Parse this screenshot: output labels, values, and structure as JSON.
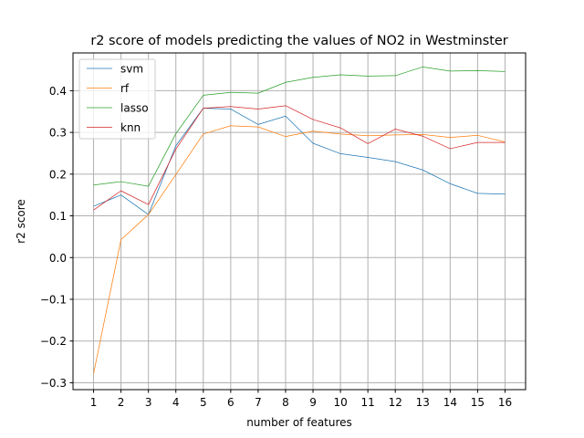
{
  "chart_data": {
    "type": "line",
    "title": "r2 score of models predicting the values of NO2 in Westminster",
    "xlabel": "number of features",
    "ylabel": "r2 score",
    "x": [
      1,
      2,
      3,
      4,
      5,
      6,
      7,
      8,
      9,
      10,
      11,
      12,
      13,
      14,
      15,
      16
    ],
    "xlim": [
      0.25,
      16.75
    ],
    "ylim": [
      -0.3165,
      0.4905
    ],
    "yticks": [
      -0.3,
      -0.2,
      -0.1,
      0.0,
      0.1,
      0.2,
      0.3,
      0.4
    ],
    "ytick_labels": [
      "−0.3",
      "−0.2",
      "−0.1",
      "0.0",
      "0.1",
      "0.2",
      "0.3",
      "0.4"
    ],
    "grid": true,
    "legend_position": "top-left",
    "series": [
      {
        "name": "svm",
        "color": "#1f77b4",
        "values": [
          0.123,
          0.15,
          0.103,
          0.268,
          0.358,
          0.356,
          0.319,
          0.339,
          0.274,
          0.249,
          0.24,
          0.23,
          0.21,
          0.177,
          0.154,
          0.152
        ]
      },
      {
        "name": "rf",
        "color": "#ff7f0e",
        "values": [
          -0.278,
          0.043,
          0.103,
          0.199,
          0.296,
          0.316,
          0.313,
          0.29,
          0.303,
          0.296,
          0.292,
          0.294,
          0.295,
          0.288,
          0.293,
          0.277
        ]
      },
      {
        "name": "lasso",
        "color": "#2ca02c",
        "values": [
          0.174,
          0.182,
          0.171,
          0.297,
          0.389,
          0.396,
          0.394,
          0.42,
          0.432,
          0.438,
          0.435,
          0.436,
          0.457,
          0.447,
          0.448,
          0.446
        ]
      },
      {
        "name": "knn",
        "color": "#d62728",
        "values": [
          0.114,
          0.16,
          0.127,
          0.26,
          0.358,
          0.362,
          0.356,
          0.364,
          0.331,
          0.311,
          0.273,
          0.308,
          0.291,
          0.261,
          0.276,
          0.276
        ]
      }
    ]
  }
}
